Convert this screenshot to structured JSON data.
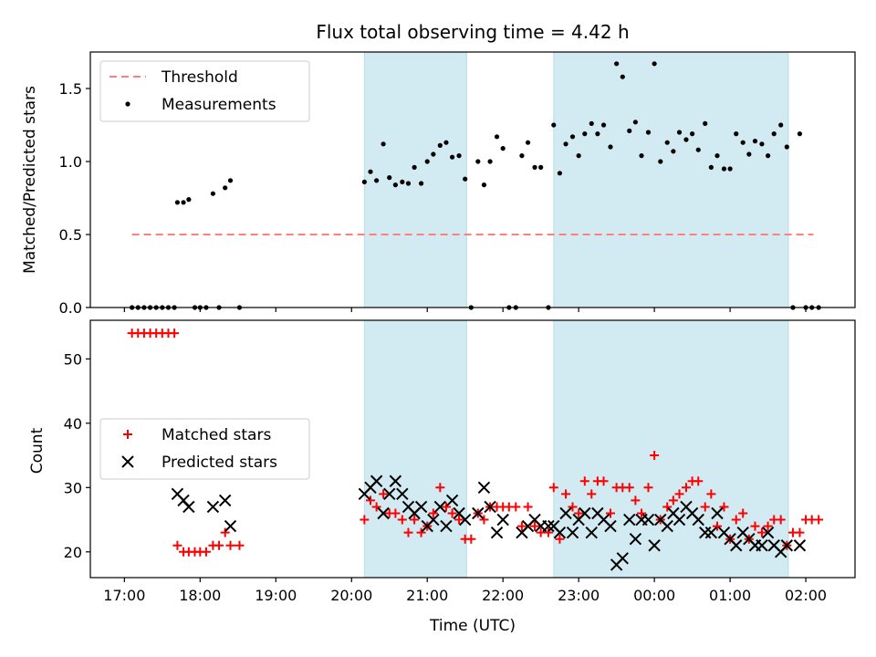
{
  "chart_data": [
    {
      "type": "scatter",
      "title": "Flux total observing time = 4.42 h",
      "xlabel": "",
      "ylabel": "Matched/Predicted stars",
      "xlim_hours": [
        16.55,
        26.65
      ],
      "ylim": [
        0,
        1.75
      ],
      "yticks": [
        "0.0",
        "0.5",
        "1.0",
        "1.5"
      ],
      "ytick_values": [
        0,
        0.5,
        1.0,
        1.5
      ],
      "legend_position": "upper-left",
      "legend": [
        {
          "label": "Threshold",
          "style": "dashed-line",
          "color": "#ff7f7f"
        },
        {
          "label": "Measurements",
          "style": "dot",
          "color": "#000000"
        }
      ],
      "threshold": {
        "value": 0.5,
        "x_range_hours": [
          17.1,
          26.1
        ]
      },
      "shaded_spans_hours": [
        [
          20.17,
          21.52
        ],
        [
          22.67,
          25.77
        ]
      ],
      "span_color": "#add8e6",
      "series": [
        {
          "name": "Measurements",
          "color": "#000000",
          "points": [
            [
              17.1,
              0
            ],
            [
              17.18,
              0
            ],
            [
              17.26,
              0
            ],
            [
              17.34,
              0
            ],
            [
              17.42,
              0
            ],
            [
              17.5,
              0
            ],
            [
              17.58,
              0
            ],
            [
              17.66,
              0
            ],
            [
              17.7,
              0.72
            ],
            [
              17.78,
              0.72
            ],
            [
              17.85,
              0.74
            ],
            [
              17.93,
              0
            ],
            [
              18.0,
              0
            ],
            [
              18.08,
              0
            ],
            [
              18.17,
              0.78
            ],
            [
              18.25,
              0
            ],
            [
              18.33,
              0.82
            ],
            [
              18.4,
              0.87
            ],
            [
              18.52,
              0
            ],
            [
              20.17,
              0.86
            ],
            [
              20.25,
              0.93
            ],
            [
              20.33,
              0.87
            ],
            [
              20.42,
              1.12
            ],
            [
              20.5,
              0.89
            ],
            [
              20.58,
              0.84
            ],
            [
              20.67,
              0.86
            ],
            [
              20.75,
              0.85
            ],
            [
              20.83,
              0.96
            ],
            [
              20.92,
              0.85
            ],
            [
              21.0,
              1.0
            ],
            [
              21.08,
              1.05
            ],
            [
              21.17,
              1.11
            ],
            [
              21.25,
              1.13
            ],
            [
              21.33,
              1.03
            ],
            [
              21.42,
              1.04
            ],
            [
              21.5,
              0.88
            ],
            [
              21.58,
              0
            ],
            [
              21.67,
              1.0
            ],
            [
              21.75,
              0.84
            ],
            [
              21.83,
              1.0
            ],
            [
              21.92,
              1.17
            ],
            [
              22.0,
              1.09
            ],
            [
              22.08,
              0
            ],
            [
              22.17,
              0
            ],
            [
              22.25,
              1.04
            ],
            [
              22.33,
              1.13
            ],
            [
              22.42,
              0.96
            ],
            [
              22.5,
              0.96
            ],
            [
              22.6,
              0
            ],
            [
              22.67,
              1.25
            ],
            [
              22.75,
              0.92
            ],
            [
              22.83,
              1.12
            ],
            [
              22.92,
              1.17
            ],
            [
              23.0,
              1.04
            ],
            [
              23.08,
              1.19
            ],
            [
              23.17,
              1.26
            ],
            [
              23.25,
              1.19
            ],
            [
              23.33,
              1.25
            ],
            [
              23.42,
              1.1
            ],
            [
              23.5,
              1.67
            ],
            [
              23.58,
              1.58
            ],
            [
              23.67,
              1.21
            ],
            [
              23.75,
              1.27
            ],
            [
              23.83,
              1.04
            ],
            [
              23.92,
              1.2
            ],
            [
              24.0,
              1.67
            ],
            [
              24.08,
              1.0
            ],
            [
              24.17,
              1.13
            ],
            [
              24.25,
              1.07
            ],
            [
              24.33,
              1.2
            ],
            [
              24.42,
              1.15
            ],
            [
              24.5,
              1.19
            ],
            [
              24.58,
              1.08
            ],
            [
              24.67,
              1.26
            ],
            [
              24.75,
              0.96
            ],
            [
              24.83,
              1.04
            ],
            [
              24.92,
              0.95
            ],
            [
              25.0,
              0.95
            ],
            [
              25.08,
              1.19
            ],
            [
              25.17,
              1.13
            ],
            [
              25.25,
              1.05
            ],
            [
              25.33,
              1.14
            ],
            [
              25.42,
              1.12
            ],
            [
              25.5,
              1.04
            ],
            [
              25.58,
              1.19
            ],
            [
              25.67,
              1.25
            ],
            [
              25.75,
              1.1
            ],
            [
              25.83,
              0
            ],
            [
              25.92,
              1.19
            ],
            [
              26.0,
              0
            ],
            [
              26.08,
              0
            ],
            [
              26.17,
              0
            ]
          ]
        }
      ]
    },
    {
      "type": "scatter",
      "title": "",
      "xlabel": "Time (UTC)",
      "ylabel": "Count",
      "xlim_hours": [
        16.55,
        26.65
      ],
      "ylim": [
        16,
        56
      ],
      "yticks": [
        "20",
        "30",
        "40",
        "50"
      ],
      "ytick_values": [
        20,
        30,
        40,
        50
      ],
      "xticks": [
        "17:00",
        "18:00",
        "19:00",
        "20:00",
        "21:00",
        "22:00",
        "23:00",
        "00:00",
        "01:00",
        "02:00"
      ],
      "xtick_values_hours": [
        17,
        18,
        19,
        20,
        21,
        22,
        23,
        24,
        25,
        26
      ],
      "legend_position": "center-left",
      "legend": [
        {
          "label": "Matched stars",
          "style": "plus",
          "color": "#ff0000"
        },
        {
          "label": "Predicted stars",
          "style": "x",
          "color": "#000000"
        }
      ],
      "shaded_spans_hours": [
        [
          20.17,
          21.52
        ],
        [
          22.67,
          25.77
        ]
      ],
      "span_color": "#add8e6",
      "series": [
        {
          "name": "Matched stars",
          "color": "#ff0000",
          "marker": "plus",
          "points": [
            [
              17.1,
              54
            ],
            [
              17.18,
              54
            ],
            [
              17.26,
              54
            ],
            [
              17.34,
              54
            ],
            [
              17.42,
              54
            ],
            [
              17.5,
              54
            ],
            [
              17.58,
              54
            ],
            [
              17.66,
              54
            ],
            [
              17.7,
              21
            ],
            [
              17.78,
              20
            ],
            [
              17.85,
              20
            ],
            [
              17.93,
              20
            ],
            [
              18.0,
              20
            ],
            [
              18.08,
              20
            ],
            [
              18.17,
              21
            ],
            [
              18.25,
              21
            ],
            [
              18.33,
              23
            ],
            [
              18.4,
              21
            ],
            [
              18.52,
              21
            ],
            [
              20.17,
              25
            ],
            [
              20.25,
              28
            ],
            [
              20.33,
              27
            ],
            [
              20.42,
              29
            ],
            [
              20.5,
              26
            ],
            [
              20.58,
              26
            ],
            [
              20.67,
              25
            ],
            [
              20.75,
              23
            ],
            [
              20.83,
              25
            ],
            [
              20.92,
              23
            ],
            [
              21.0,
              24
            ],
            [
              21.08,
              26
            ],
            [
              21.17,
              30
            ],
            [
              21.25,
              27
            ],
            [
              21.33,
              26
            ],
            [
              21.42,
              25
            ],
            [
              21.5,
              22
            ],
            [
              21.58,
              22
            ],
            [
              21.67,
              26
            ],
            [
              21.75,
              25
            ],
            [
              21.83,
              27
            ],
            [
              21.92,
              27
            ],
            [
              22.0,
              27
            ],
            [
              22.08,
              27
            ],
            [
              22.17,
              27
            ],
            [
              22.25,
              24
            ],
            [
              22.33,
              27
            ],
            [
              22.42,
              24
            ],
            [
              22.5,
              23
            ],
            [
              22.6,
              23
            ],
            [
              22.67,
              30
            ],
            [
              22.75,
              22
            ],
            [
              22.83,
              29
            ],
            [
              22.92,
              27
            ],
            [
              23.0,
              26
            ],
            [
              23.08,
              31
            ],
            [
              23.17,
              29
            ],
            [
              23.25,
              31
            ],
            [
              23.33,
              31
            ],
            [
              23.42,
              26
            ],
            [
              23.5,
              30
            ],
            [
              23.58,
              30
            ],
            [
              23.67,
              30
            ],
            [
              23.75,
              28
            ],
            [
              23.83,
              26
            ],
            [
              23.92,
              30
            ],
            [
              24.0,
              35
            ],
            [
              24.08,
              25
            ],
            [
              24.17,
              27
            ],
            [
              24.25,
              28
            ],
            [
              24.33,
              29
            ],
            [
              24.42,
              30
            ],
            [
              24.5,
              31
            ],
            [
              24.58,
              31
            ],
            [
              24.67,
              27
            ],
            [
              24.75,
              29
            ],
            [
              24.83,
              24
            ],
            [
              24.92,
              27
            ],
            [
              25.0,
              22
            ],
            [
              25.08,
              25
            ],
            [
              25.17,
              26
            ],
            [
              25.25,
              22
            ],
            [
              25.33,
              24
            ],
            [
              25.42,
              23
            ],
            [
              25.5,
              24
            ],
            [
              25.58,
              25
            ],
            [
              25.67,
              25
            ],
            [
              25.75,
              21
            ],
            [
              25.83,
              23
            ],
            [
              25.92,
              23
            ],
            [
              26.0,
              25
            ],
            [
              26.08,
              25
            ],
            [
              26.17,
              25
            ]
          ]
        },
        {
          "name": "Predicted stars",
          "color": "#000000",
          "marker": "x",
          "points": [
            [
              17.7,
              29
            ],
            [
              17.78,
              28
            ],
            [
              17.85,
              27
            ],
            [
              18.17,
              27
            ],
            [
              18.33,
              28
            ],
            [
              18.4,
              24
            ],
            [
              20.17,
              29
            ],
            [
              20.25,
              30
            ],
            [
              20.33,
              31
            ],
            [
              20.42,
              26
            ],
            [
              20.5,
              29
            ],
            [
              20.58,
              31
            ],
            [
              20.67,
              29
            ],
            [
              20.75,
              27
            ],
            [
              20.83,
              26
            ],
            [
              20.92,
              27
            ],
            [
              21.0,
              24
            ],
            [
              21.08,
              25
            ],
            [
              21.17,
              27
            ],
            [
              21.25,
              24
            ],
            [
              21.33,
              28
            ],
            [
              21.42,
              26
            ],
            [
              21.5,
              25
            ],
            [
              21.67,
              26
            ],
            [
              21.75,
              30
            ],
            [
              21.83,
              27
            ],
            [
              21.92,
              23
            ],
            [
              22.0,
              25
            ],
            [
              22.25,
              23
            ],
            [
              22.33,
              24
            ],
            [
              22.42,
              25
            ],
            [
              22.5,
              24
            ],
            [
              22.6,
              24
            ],
            [
              22.67,
              24
            ],
            [
              22.75,
              23
            ],
            [
              22.83,
              26
            ],
            [
              22.92,
              23
            ],
            [
              23.0,
              25
            ],
            [
              23.08,
              26
            ],
            [
              23.17,
              23
            ],
            [
              23.25,
              26
            ],
            [
              23.33,
              25
            ],
            [
              23.42,
              24
            ],
            [
              23.5,
              18
            ],
            [
              23.58,
              19
            ],
            [
              23.67,
              25
            ],
            [
              23.75,
              22
            ],
            [
              23.83,
              25
            ],
            [
              23.92,
              25
            ],
            [
              24.0,
              21
            ],
            [
              24.08,
              25
            ],
            [
              24.17,
              24
            ],
            [
              24.25,
              26
            ],
            [
              24.33,
              25
            ],
            [
              24.42,
              27
            ],
            [
              24.5,
              26
            ],
            [
              24.58,
              25
            ],
            [
              24.67,
              23
            ],
            [
              24.75,
              23
            ],
            [
              24.83,
              26
            ],
            [
              24.92,
              23
            ],
            [
              25.0,
              22
            ],
            [
              25.08,
              21
            ],
            [
              25.17,
              23
            ],
            [
              25.25,
              22
            ],
            [
              25.33,
              21
            ],
            [
              25.42,
              21
            ],
            [
              25.5,
              23
            ],
            [
              25.58,
              21
            ],
            [
              25.67,
              20
            ],
            [
              25.75,
              21
            ],
            [
              25.92,
              21
            ]
          ]
        }
      ]
    }
  ]
}
